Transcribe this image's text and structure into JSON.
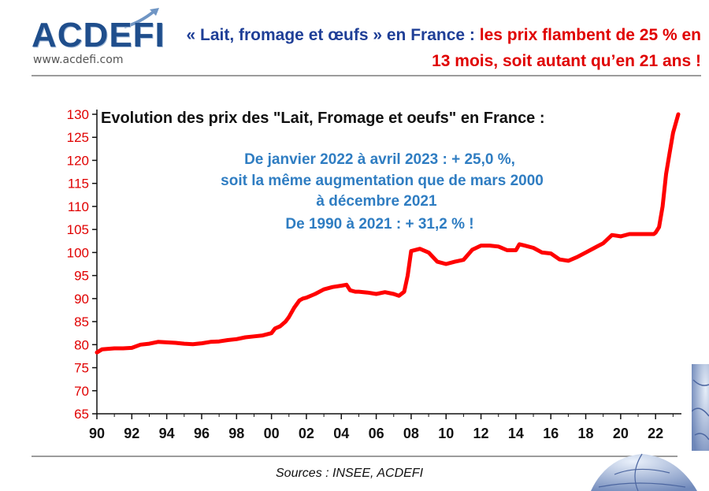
{
  "logo": {
    "name": "ACDEFI",
    "url": "www.acdefi.com"
  },
  "headline": {
    "blue": "« Lait, fromage et œufs » en France : ",
    "red": "les prix flambent de 25 % en 13 mois, soit autant qu’en 21 ans !"
  },
  "source": "Sources : INSEE, ACDEFI",
  "colors": {
    "line": "#ff0000",
    "annotation": "#2f7dc2",
    "axis_text": "#e00000",
    "headline_blue": "#1f3f97"
  },
  "chart_data": {
    "type": "line",
    "title": "Evolution des prix des \"Lait, Fromage et oeufs\" en France :",
    "annotation": [
      "De janvier 2022 à avril 2023 : + 25,0 %,",
      "soit la même augmentation que de mars 2000",
      "à décembre 2021",
      "De 1990 à 2021 : + 31,2 % !"
    ],
    "xlabel": "",
    "ylabel": "",
    "xlim": [
      1990,
      2023.3
    ],
    "ylim": [
      65,
      130
    ],
    "x_ticks": [
      "90",
      "92",
      "94",
      "96",
      "98",
      "00",
      "02",
      "04",
      "06",
      "08",
      "10",
      "12",
      "14",
      "16",
      "18",
      "20",
      "22"
    ],
    "y_ticks": [
      65,
      70,
      75,
      80,
      85,
      90,
      95,
      100,
      105,
      110,
      115,
      120,
      125,
      130
    ],
    "grid": false,
    "series": [
      {
        "x": [
          1990.0,
          1990.3,
          1991.0,
          1991.5,
          1992.0,
          1992.5,
          1993.0,
          1993.5,
          1994.0,
          1994.5,
          1995.0,
          1995.5,
          1996.0,
          1996.5,
          1997.0,
          1997.5,
          1998.0,
          1998.5,
          1999.0,
          1999.5,
          2000.0,
          2000.2,
          2000.5,
          2000.8,
          2001.0,
          2001.3,
          2001.6,
          2001.8,
          2002.0,
          2002.5,
          2003.0,
          2003.5,
          2004.0,
          2004.3,
          2004.5,
          2004.8,
          2005.0,
          2005.5,
          2006.0,
          2006.5,
          2007.0,
          2007.3,
          2007.6,
          2007.8,
          2008.0,
          2008.5,
          2009.0,
          2009.5,
          2010.0,
          2010.5,
          2011.0,
          2011.5,
          2012.0,
          2012.5,
          2013.0,
          2013.5,
          2014.0,
          2014.2,
          2014.5,
          2015.0,
          2015.5,
          2016.0,
          2016.5,
          2017.0,
          2017.5,
          2018.0,
          2018.5,
          2019.0,
          2019.5,
          2020.0,
          2020.5,
          2021.0,
          2021.5,
          2021.9,
          2022.0,
          2022.2,
          2022.4,
          2022.6,
          2022.8,
          2023.0,
          2023.3
        ],
        "y": [
          78.3,
          79.0,
          79.2,
          79.2,
          79.3,
          80.0,
          80.2,
          80.6,
          80.5,
          80.4,
          80.2,
          80.1,
          80.3,
          80.6,
          80.7,
          81.0,
          81.2,
          81.6,
          81.8,
          82.0,
          82.5,
          83.5,
          84.0,
          85.0,
          86.0,
          88.0,
          89.6,
          90.0,
          90.2,
          91.0,
          92.0,
          92.5,
          92.8,
          93.0,
          91.8,
          91.5,
          91.5,
          91.3,
          91.0,
          91.4,
          91.0,
          90.6,
          91.5,
          95.0,
          100.3,
          100.8,
          100.0,
          98.0,
          97.5,
          98.0,
          98.4,
          100.6,
          101.5,
          101.5,
          101.3,
          100.5,
          100.5,
          101.8,
          101.5,
          101.0,
          100.0,
          99.8,
          98.5,
          98.2,
          99.0,
          100.0,
          101.0,
          102.0,
          103.8,
          103.5,
          104.0,
          104.0,
          104.0,
          104.0,
          104.3,
          105.5,
          110.0,
          117.0,
          121.5,
          126.0,
          130.0
        ]
      }
    ]
  }
}
